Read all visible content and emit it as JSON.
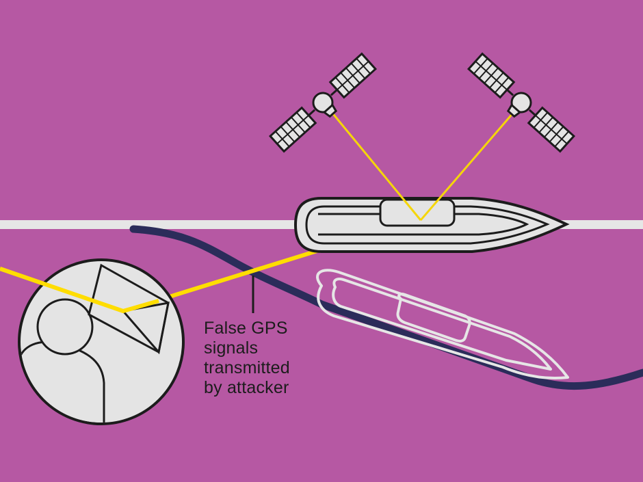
{
  "colors": {
    "background": "#b658a3",
    "intended_route": "#e6e6e6",
    "spoofed_route": "#2b2c5a",
    "gps_signal": "#f5d60a",
    "false_signal": "#ffdd00",
    "outline": "#1c1c1c",
    "fill": "#e4e4e4",
    "ghost_ship_outline": "#e6e6e6"
  },
  "icons": {
    "satellite": "satellite-icon",
    "ship": "ship-icon",
    "ghost_ship": "ghost-ship-icon",
    "attacker": "attacker-transmitter-icon"
  },
  "annotation": {
    "lines": [
      "False GPS",
      "signals",
      "transmitted",
      "by attacker"
    ]
  }
}
